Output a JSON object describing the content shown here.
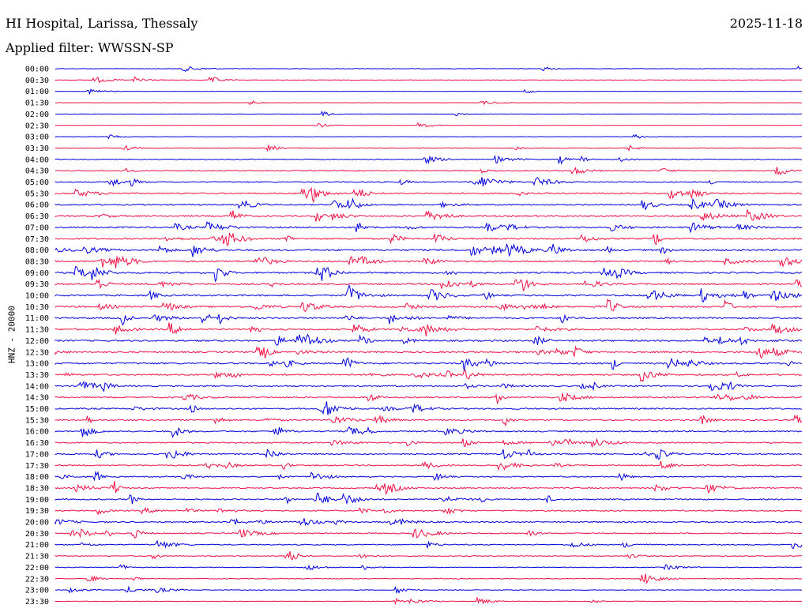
{
  "header": {
    "station": "HI Hospital, Larissa, Thessaly",
    "date": "2025-11-18",
    "filter": "Applied filter: WWSSN-SP"
  },
  "chart_data": {
    "type": "line",
    "title": "HI Hospital, Larissa, Thessaly",
    "subtitle": "Applied filter: WWSSN-SP",
    "ylabel": "HNZ - 20000",
    "series_colors": [
      "#0000dd",
      "#ee1144"
    ],
    "rows": [
      {
        "time": "00:00",
        "activity": 0.5
      },
      {
        "time": "00:30",
        "activity": 0.5
      },
      {
        "time": "01:00",
        "activity": 0.3
      },
      {
        "time": "01:30",
        "activity": 0.3
      },
      {
        "time": "02:00",
        "activity": 0.3
      },
      {
        "time": "02:30",
        "activity": 0.3
      },
      {
        "time": "03:00",
        "activity": 0.4
      },
      {
        "time": "03:30",
        "activity": 0.6
      },
      {
        "time": "04:00",
        "activity": 0.8
      },
      {
        "time": "04:30",
        "activity": 0.9
      },
      {
        "time": "05:00",
        "activity": 1.1
      },
      {
        "time": "05:30",
        "activity": 1.3
      },
      {
        "time": "06:00",
        "activity": 1.3
      },
      {
        "time": "06:30",
        "activity": 1.4
      },
      {
        "time": "07:00",
        "activity": 1.5
      },
      {
        "time": "07:30",
        "activity": 1.5
      },
      {
        "time": "08:00",
        "activity": 1.7
      },
      {
        "time": "08:30",
        "activity": 1.5
      },
      {
        "time": "09:00",
        "activity": 1.6
      },
      {
        "time": "09:30",
        "activity": 1.5
      },
      {
        "time": "10:00",
        "activity": 1.6
      },
      {
        "time": "10:30",
        "activity": 1.7
      },
      {
        "time": "11:00",
        "activity": 1.6
      },
      {
        "time": "11:30",
        "activity": 1.6
      },
      {
        "time": "12:00",
        "activity": 1.6
      },
      {
        "time": "12:30",
        "activity": 1.6
      },
      {
        "time": "13:00",
        "activity": 1.6
      },
      {
        "time": "13:30",
        "activity": 1.5
      },
      {
        "time": "14:00",
        "activity": 1.4
      },
      {
        "time": "14:30",
        "activity": 1.3
      },
      {
        "time": "15:00",
        "activity": 1.4
      },
      {
        "time": "15:30",
        "activity": 1.3
      },
      {
        "time": "16:00",
        "activity": 1.3
      },
      {
        "time": "16:30",
        "activity": 1.2
      },
      {
        "time": "17:00",
        "activity": 1.3
      },
      {
        "time": "17:30",
        "activity": 1.2
      },
      {
        "time": "18:00",
        "activity": 1.1
      },
      {
        "time": "18:30",
        "activity": 1.1
      },
      {
        "time": "19:00",
        "activity": 1.3
      },
      {
        "time": "19:30",
        "activity": 1.2
      },
      {
        "time": "20:00",
        "activity": 1.2
      },
      {
        "time": "20:30",
        "activity": 1.1
      },
      {
        "time": "21:00",
        "activity": 1.0
      },
      {
        "time": "21:30",
        "activity": 0.8
      },
      {
        "time": "22:00",
        "activity": 0.7
      },
      {
        "time": "22:30",
        "activity": 0.7
      },
      {
        "time": "23:00",
        "activity": 0.6
      },
      {
        "time": "23:30",
        "activity": 0.6
      }
    ],
    "grid": false,
    "legend": "none"
  }
}
